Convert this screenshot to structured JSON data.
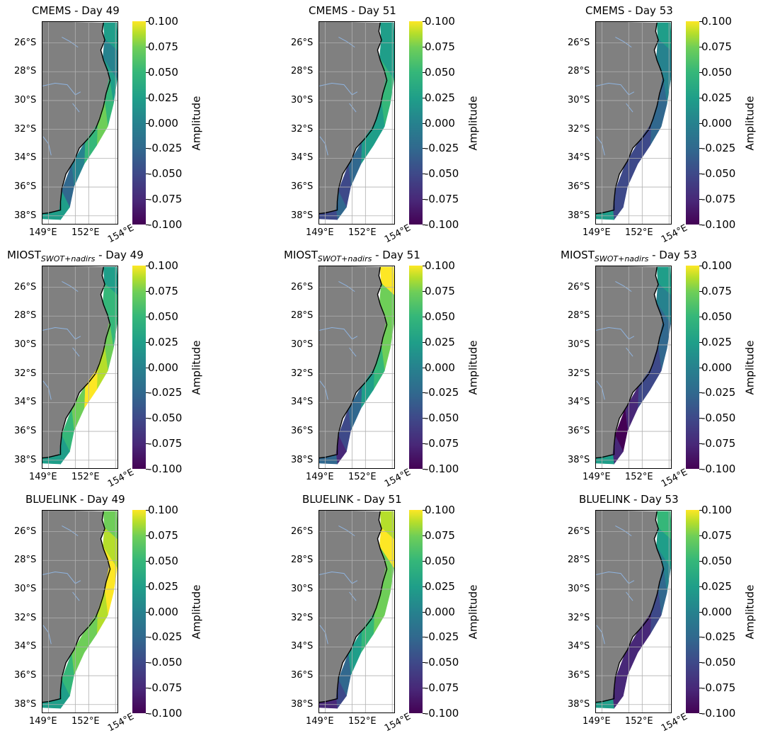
{
  "chart_data": {
    "type": "heatmap",
    "description_colormap": "viridis",
    "rows": [
      "CMEMS",
      "MIOST_SWOT+nadirs",
      "BLUELINK"
    ],
    "days": [
      49,
      51,
      53
    ],
    "colorbar": {
      "label": "Amplitude",
      "min": -0.1,
      "max": 0.1,
      "ticks": [
        "0.100",
        "0.075",
        "0.050",
        "0.025",
        "0.000",
        "-0.025",
        "-0.050",
        "-0.075",
        "-0.100"
      ],
      "colors": [
        "#440154",
        "#482878",
        "#3e4989",
        "#31688e",
        "#26828e",
        "#1f9e89",
        "#35b779",
        "#6ece58",
        "#b5de2b",
        "#fde725"
      ]
    },
    "y_ticks": [
      "26°S",
      "28°S",
      "30°S",
      "32°S",
      "34°S",
      "36°S",
      "38°S"
    ],
    "x_ticks": [
      "149°E",
      "152°E",
      "154°E"
    ],
    "extent": {
      "lon": [
        148.5,
        154.2
      ],
      "lat": [
        -38.6,
        -24.5
      ]
    },
    "land_color": "#808080",
    "river_color": "#8fb4e0",
    "panels": [
      {
        "title": "CMEMS - Day 49",
        "title_main": "CMEMS",
        "title_sub": "",
        "title_day": " - Day 49",
        "amplitude_north_to_south": [
          0.0,
          -0.02,
          0.01,
          0.03,
          0.05,
          0.03,
          -0.01,
          -0.03,
          0.02,
          0.01
        ]
      },
      {
        "title": "CMEMS - Day 51",
        "title_main": "CMEMS",
        "title_sub": "",
        "title_day": " - Day 51",
        "amplitude_north_to_south": [
          0.02,
          0.0,
          0.04,
          0.03,
          0.02,
          0.0,
          -0.03,
          -0.06,
          -0.04,
          -0.05
        ]
      },
      {
        "title": "CMEMS - Day 53",
        "title_main": "CMEMS",
        "title_sub": "",
        "title_day": " - Day 53",
        "amplitude_north_to_south": [
          0.0,
          -0.01,
          -0.02,
          -0.03,
          -0.04,
          -0.05,
          -0.06,
          -0.06,
          -0.05,
          0.0
        ]
      },
      {
        "title": "MIOST_SWOT+nadirs - Day 49",
        "title_main": "MIOST",
        "title_sub": "SWOT+nadirs",
        "title_day": " - Day 49",
        "amplitude_north_to_south": [
          0.02,
          0.03,
          0.04,
          0.05,
          0.08,
          0.09,
          0.05,
          0.03,
          0.01,
          0.0
        ]
      },
      {
        "title": "MIOST_SWOT+nadirs - Day 51",
        "title_main": "MIOST",
        "title_sub": "SWOT+nadirs",
        "title_day": " - Day 51",
        "amplitude_north_to_south": [
          0.09,
          0.06,
          0.05,
          0.06,
          0.03,
          0.0,
          -0.04,
          -0.06,
          -0.07,
          -0.03
        ]
      },
      {
        "title": "MIOST_SWOT+nadirs - Day 53",
        "title_main": "MIOST",
        "title_sub": "SWOT+nadirs",
        "title_day": " - Day 53",
        "amplitude_north_to_south": [
          0.0,
          -0.01,
          -0.03,
          -0.04,
          -0.05,
          -0.06,
          -0.07,
          -0.09,
          -0.08,
          0.0
        ]
      },
      {
        "title": "BLUELINK - Day 49",
        "title_main": "BLUELINK",
        "title_sub": "",
        "title_day": " - Day 49",
        "amplitude_north_to_south": [
          0.06,
          0.08,
          0.09,
          0.09,
          0.08,
          0.06,
          0.05,
          0.04,
          0.02,
          0.01
        ]
      },
      {
        "title": "BLUELINK - Day 51",
        "title_main": "BLUELINK",
        "title_sub": "",
        "title_day": " - Day 51",
        "amplitude_north_to_south": [
          0.07,
          0.09,
          0.06,
          0.05,
          0.05,
          0.03,
          0.01,
          -0.03,
          -0.06,
          -0.08
        ]
      },
      {
        "title": "BLUELINK - Day 53",
        "title_main": "BLUELINK",
        "title_sub": "",
        "title_day": " - Day 53",
        "amplitude_north_to_south": [
          0.04,
          0.02,
          -0.01,
          -0.03,
          -0.05,
          -0.07,
          -0.08,
          -0.08,
          -0.07,
          0.0
        ]
      }
    ]
  }
}
